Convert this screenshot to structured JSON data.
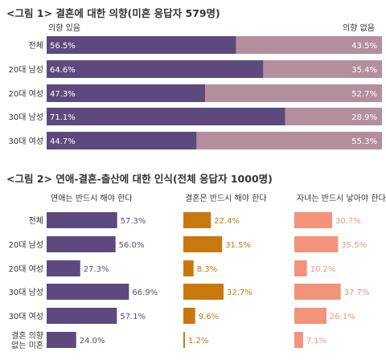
{
  "chart_data": [
    {
      "type": "bar",
      "orientation": "horizontal",
      "stacked": true,
      "title": "<그림 1> 결혼에 대한 의향(미혼 응답자 579명)",
      "categories": [
        "전체",
        "20대 남성",
        "20대 여성",
        "30대 남성",
        "30대 여성"
      ],
      "series": [
        {
          "name": "의향 있음",
          "values": [
            56.5,
            64.6,
            47.3,
            71.1,
            44.7
          ],
          "labels": [
            "56.5%",
            "64.6%",
            "47.3%",
            "71.1%",
            "44.7%"
          ],
          "color": "#5c4a7e"
        },
        {
          "name": "의향 없음",
          "values": [
            43.5,
            35.4,
            52.7,
            28.9,
            55.3
          ],
          "labels": [
            "43.5%",
            "35.4%",
            "52.7%",
            "28.9%",
            "55.3%"
          ],
          "color": "#b38f9e"
        }
      ],
      "xlim": [
        0,
        100
      ],
      "grid": false,
      "legend": "top"
    },
    {
      "type": "bar",
      "orientation": "horizontal",
      "title": "<그림 2> 연애-결혼-출산에 대한 인식(전체 응답자 1000명)",
      "categories": [
        "전체",
        "20대 남성",
        "20대 여성",
        "30대 남성",
        "30대 여성",
        "결혼 의향 없는 미혼"
      ],
      "category_lines": [
        [
          "전체"
        ],
        [
          "20대 남성"
        ],
        [
          "20대 여성"
        ],
        [
          "30대 남성"
        ],
        [
          "30대 여성"
        ],
        [
          "결혼 의향",
          "없는 미혼"
        ]
      ],
      "series": [
        {
          "name": "연애는 반드시 해야 한다",
          "values": [
            57.3,
            56.0,
            27.3,
            66.9,
            57.1,
            24.0
          ],
          "labels": [
            "57.3%",
            "56.0%",
            "27.3%",
            "66.9%",
            "57.1%",
            "24.0%"
          ],
          "color": "#5c4a7e"
        },
        {
          "name": "결혼은 반드시 해야 한다",
          "values": [
            22.4,
            31.5,
            8.3,
            32.7,
            9.6,
            1.2
          ],
          "labels": [
            "22.4%",
            "31.5%",
            "8.3%",
            "32.7%",
            "9.6%",
            "1.2%"
          ],
          "color": "#c9780f"
        },
        {
          "name": "자녀는 반드시 낳아야 한다",
          "values": [
            30.7,
            35.5,
            10.2,
            37.7,
            26.1,
            7.1
          ],
          "labels": [
            "30.7%",
            "35.5%",
            "10.2%",
            "37.7%",
            "26.1%",
            "7.1%"
          ],
          "color": "#f2937a"
        }
      ],
      "xlim": [
        0,
        100
      ],
      "grid": false,
      "legend": "top"
    }
  ]
}
